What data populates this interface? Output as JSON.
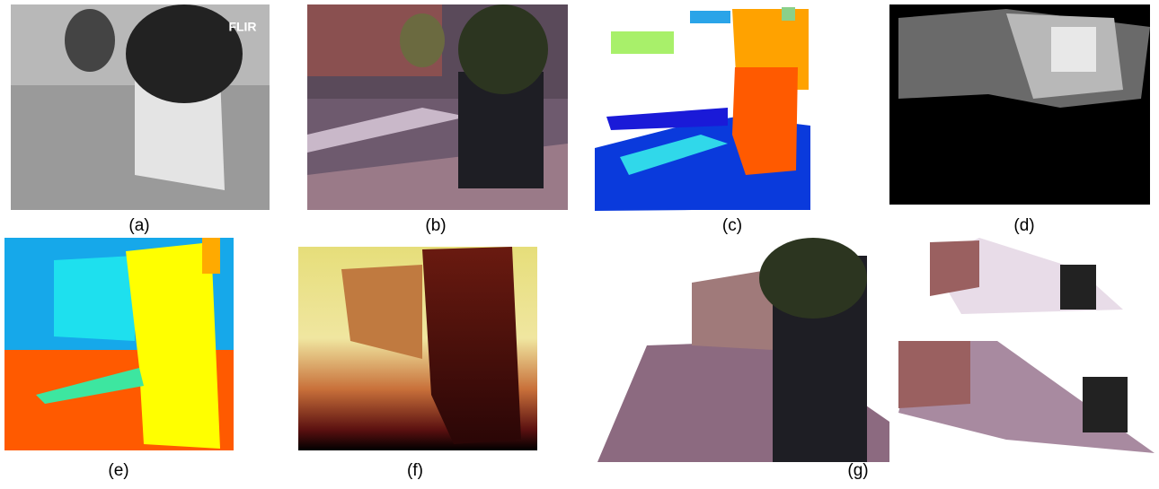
{
  "panels": [
    {
      "caption": "(a)",
      "logo": "FLIR"
    },
    {
      "caption": "(b)"
    },
    {
      "caption": "(c)"
    },
    {
      "caption": "(d)"
    },
    {
      "caption": "(e)"
    },
    {
      "caption": "(f)"
    },
    {
      "caption": "(g)"
    }
  ]
}
